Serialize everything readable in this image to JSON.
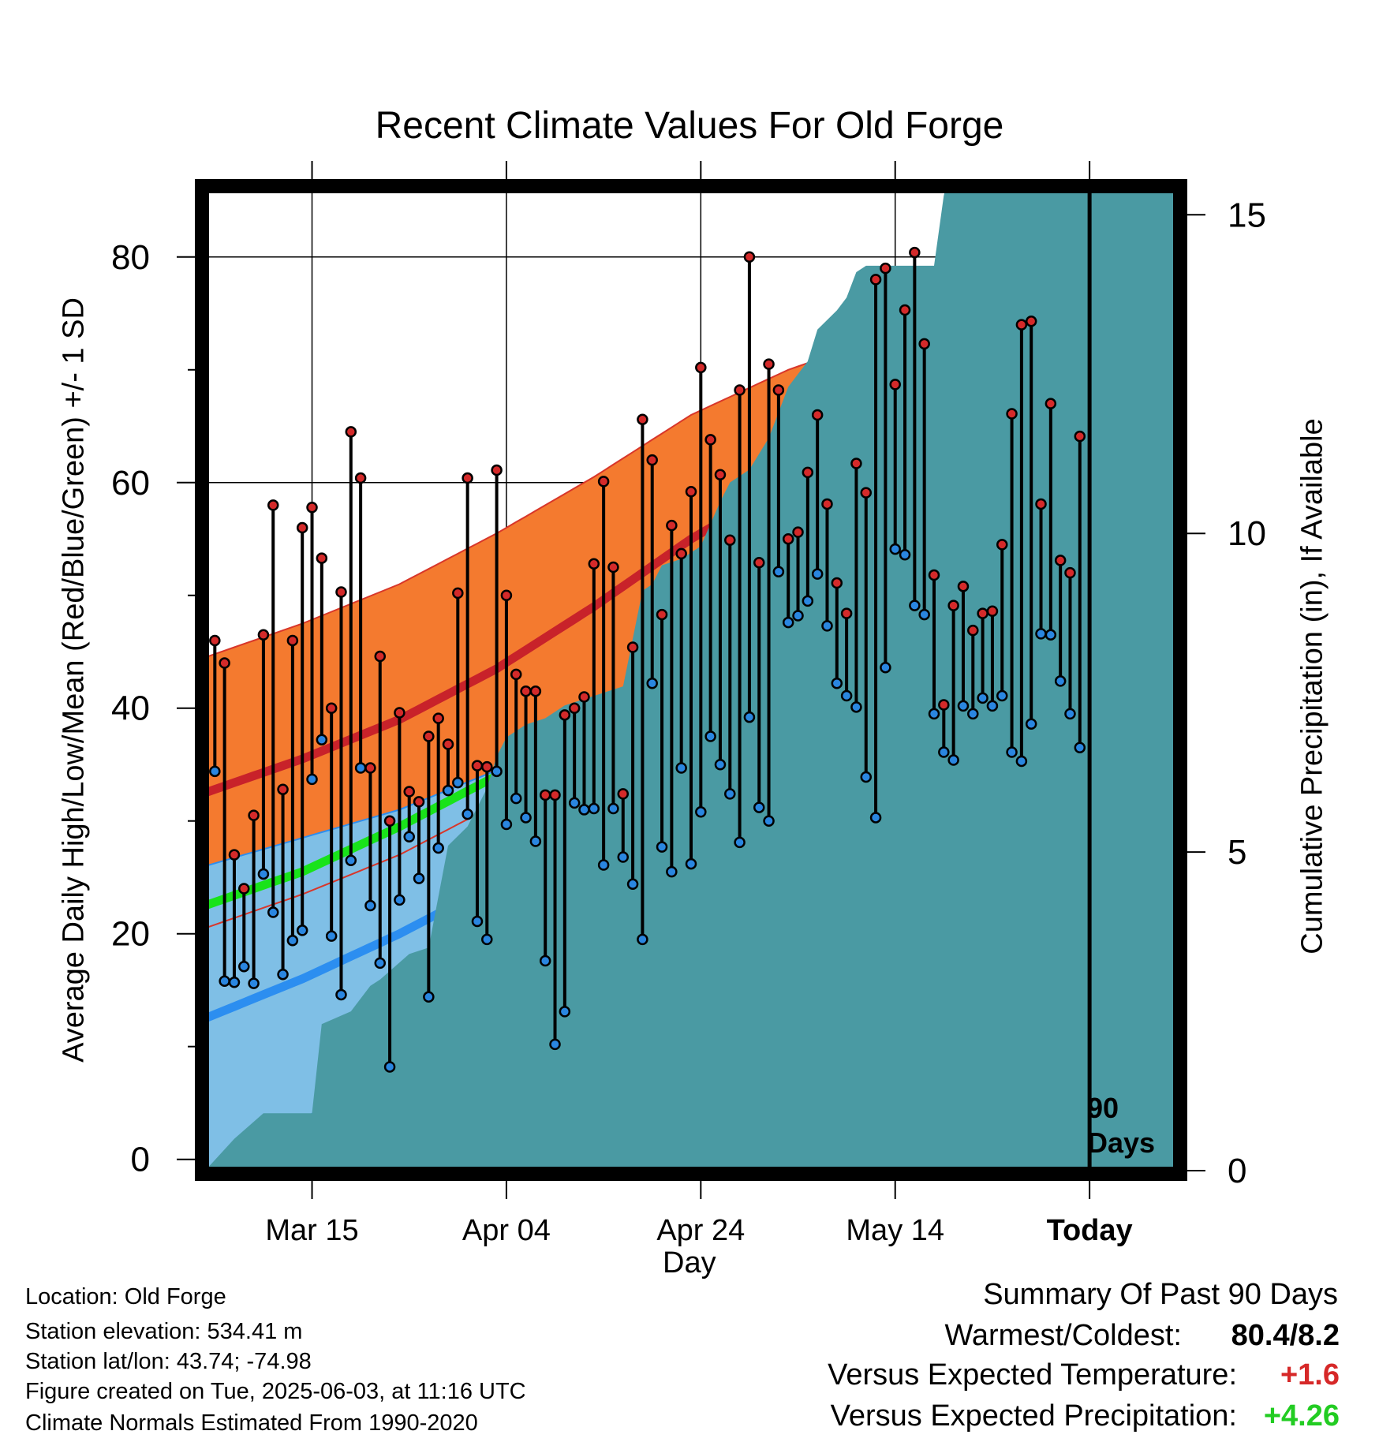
{
  "title": "Recent Climate Values For Old Forge",
  "ylabel_left": "Average Daily High/Low/Mean (Red/Blue/Green) +/- 1 SD",
  "ylabel_right": "Cumulative Precipitation (in), If Available",
  "xlabel": "Day",
  "period_marker": {
    "line1": "90",
    "line2": "Days"
  },
  "info": {
    "location": "Location: Old Forge",
    "elevation": "Station elevation: 534.41 m",
    "latlon": "Station lat/lon: 43.74; -74.98",
    "created": "Figure created on Tue, 2025-06-03, at 11:16 UTC",
    "normals": "Climate Normals Estimated From 1990-2020"
  },
  "summary": {
    "title": "Summary Of Past 90 Days",
    "warm_label": "Warmest/Coldest:",
    "warm_value": "80.4/8.2",
    "temp_label": "Versus Expected Temperature:",
    "temp_value": "+1.6",
    "precip_label": "Versus Expected Precipitation:",
    "precip_value": "+4.26"
  },
  "colors": {
    "high_band": "#f47a2f",
    "high_mean": "#c8222a",
    "low_band": "#7fbfe6",
    "low_mean": "#2c8ef0",
    "mean": "#19e31a",
    "precip": "#4a9aa3",
    "high_point": "#d42a2a",
    "low_point": "#2a86e0",
    "temp_value": "#d62828",
    "precip_value": "#22cc22"
  },
  "chart_data": {
    "type": "line",
    "x_start_offset": -91,
    "x_end_offset": 9,
    "x_ticks": [
      {
        "label": "Mar 15",
        "offset": -80
      },
      {
        "label": "Apr 04",
        "offset": -60
      },
      {
        "label": "Apr 24",
        "offset": -40
      },
      {
        "label": "May 14",
        "offset": -20
      },
      {
        "label": "Today",
        "offset": 0
      }
    ],
    "ylim": [
      -1,
      86
    ],
    "yticks": [
      0,
      20,
      40,
      60,
      80
    ],
    "y2lim": [
      0,
      15.4
    ],
    "y2ticks": [
      0,
      5,
      10,
      15
    ],
    "normals": {
      "x": [
        -91,
        -81,
        -71,
        -61,
        -51,
        -41,
        -31,
        -21,
        -11,
        -1,
        9
      ],
      "high_mean": [
        32.5,
        35.5,
        39,
        43.5,
        49,
        55,
        60,
        63.5,
        66,
        68,
        70.5
      ],
      "high_sd": [
        12,
        12,
        12,
        12,
        11.5,
        11,
        10,
        9.5,
        8.5,
        8,
        8
      ],
      "low_mean": [
        12.5,
        16,
        20,
        24.5,
        29,
        33.5,
        37.5,
        40.5,
        43.5,
        46.5,
        50
      ],
      "low_sd": [
        13.5,
        12.5,
        11,
        10,
        9,
        8,
        7.5,
        7.5,
        7,
        7,
        7
      ],
      "mean": [
        22.5,
        25.5,
        29.5,
        34,
        39,
        44,
        48.5,
        52,
        54.5,
        57,
        60
      ]
    },
    "series": [
      {
        "name": "High",
        "values": [
          46,
          44,
          27,
          24,
          30.5,
          46.5,
          58,
          32.8,
          46,
          56,
          57.8,
          53.3,
          40,
          50.3,
          64.5,
          60.4,
          34.7,
          44.6,
          30,
          39.6,
          32.6,
          31.7,
          37.5,
          39.1,
          36.8,
          50.2,
          60.4,
          34.9,
          34.8,
          61.1,
          50,
          43,
          41.5,
          41.5,
          32.3,
          32.3,
          39.4,
          40,
          41,
          52.8,
          60.1,
          52.5,
          32.4,
          45.4,
          65.6,
          62,
          48.3,
          56.2,
          53.7,
          59.2,
          70.2,
          63.8,
          60.7,
          54.9,
          68.2,
          80,
          52.9,
          70.5,
          68.2,
          55,
          55.6,
          60.9,
          66,
          58.1,
          51.1,
          48.4,
          61.7,
          59.1,
          78,
          79,
          68.7,
          75.3,
          80.4,
          72.3,
          51.8,
          40.3,
          49.1,
          50.8,
          46.9,
          48.4,
          48.6,
          54.5,
          66.1,
          74,
          74.3,
          58.1,
          67,
          53.1,
          52,
          64.1
        ]
      },
      {
        "name": "Low",
        "values": [
          34.4,
          15.8,
          15.7,
          17.1,
          15.6,
          25.3,
          21.9,
          16.4,
          19.4,
          20.3,
          33.7,
          37.2,
          19.8,
          14.6,
          26.5,
          34.7,
          22.5,
          17.4,
          8.2,
          23,
          28.6,
          24.9,
          14.4,
          27.6,
          32.7,
          33.4,
          30.6,
          21.1,
          19.5,
          34.4,
          29.7,
          32,
          30.3,
          28.2,
          17.6,
          10.2,
          13.1,
          31.6,
          31,
          31.1,
          26.1,
          31.1,
          26.8,
          24.4,
          19.5,
          42.2,
          27.7,
          25.5,
          34.7,
          26.2,
          30.8,
          37.5,
          35,
          32.4,
          28.1,
          39.2,
          31.2,
          30,
          52.1,
          47.6,
          48.2,
          49.5,
          51.9,
          47.3,
          42.2,
          41.1,
          40.1,
          33.9,
          30.3,
          43.6,
          54.1,
          53.6,
          49.1,
          48.3,
          39.5,
          36.1,
          35.4,
          40.2,
          39.5,
          40.9,
          40.2,
          41.1,
          36.1,
          35.3,
          38.6,
          46.6,
          46.5,
          42.4,
          39.5,
          36.5
        ]
      }
    ],
    "precip_cumulative": {
      "x": [
        -91,
        -88,
        -85,
        -82,
        -80,
        -79,
        -76,
        -74,
        -73,
        -70,
        -68,
        -66,
        -64,
        -62,
        -61,
        -60,
        -58,
        -56,
        -54,
        -52,
        -48,
        -46,
        -45,
        -44,
        -42,
        -40,
        -38,
        -37,
        -35,
        -33,
        -31,
        -29,
        -28,
        -26,
        -25,
        -24,
        -23,
        -22,
        -21,
        -20,
        -16,
        -15,
        -14,
        -12,
        -11,
        -10,
        -9,
        -7,
        -6,
        -4,
        -2,
        -1,
        0,
        9
      ],
      "y": [
        0,
        0.5,
        0.9,
        0.9,
        0.9,
        2.3,
        2.5,
        2.9,
        3,
        3.4,
        3.5,
        5.1,
        5.4,
        6,
        6.5,
        6.8,
        7,
        7.1,
        7.3,
        7.4,
        7.6,
        9.1,
        9.2,
        9.5,
        9.6,
        9.8,
        10.5,
        10.8,
        11,
        11.5,
        12.3,
        12.7,
        13.2,
        13.5,
        13.7,
        14.1,
        14.2,
        14.2,
        14.2,
        14.2,
        14.2,
        15.3,
        15.9,
        16.1,
        16.3,
        16.7,
        17.1,
        17.3,
        17.4,
        17.5,
        17.8,
        17.9,
        17.9,
        17.9
      ]
    }
  }
}
